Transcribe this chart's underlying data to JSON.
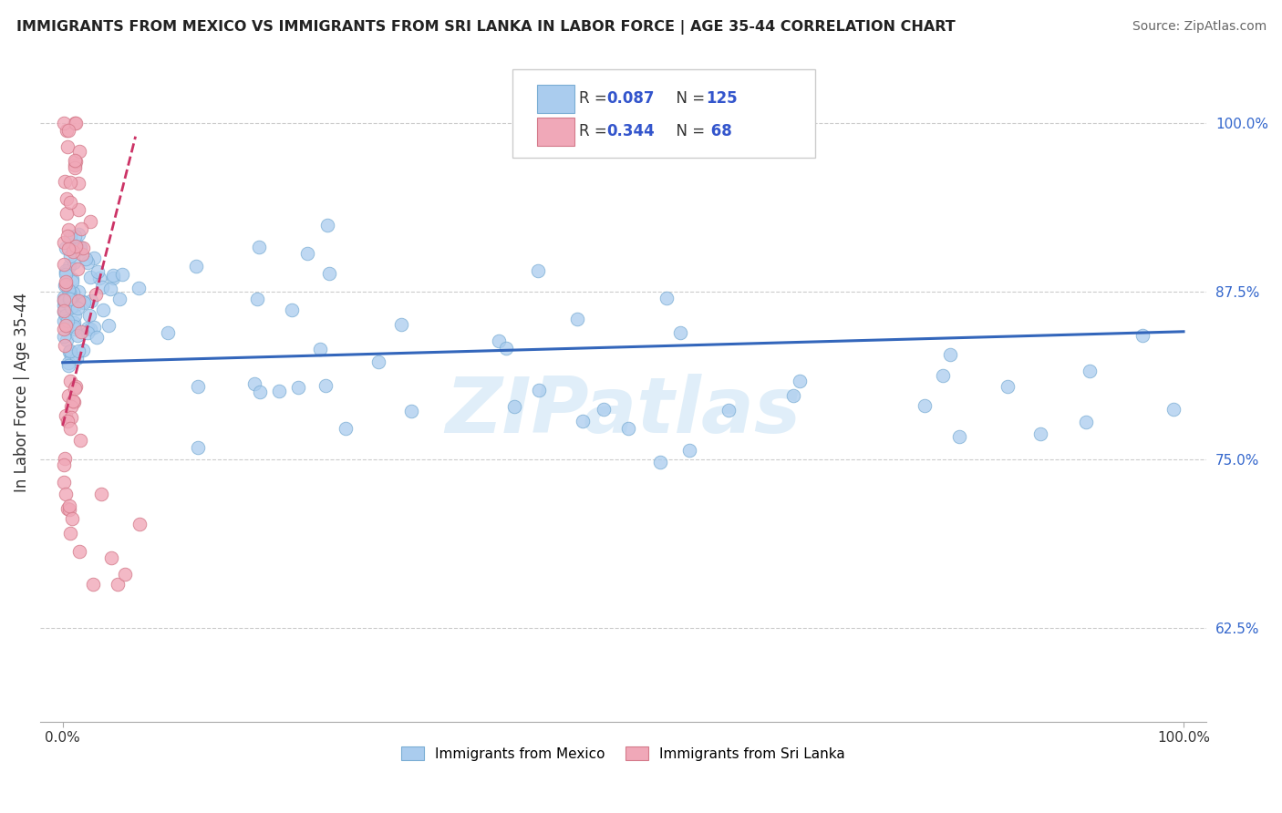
{
  "title": "IMMIGRANTS FROM MEXICO VS IMMIGRANTS FROM SRI LANKA IN LABOR FORCE | AGE 35-44 CORRELATION CHART",
  "source": "Source: ZipAtlas.com",
  "ylabel": "In Labor Force | Age 35-44",
  "xlim": [
    -0.02,
    1.02
  ],
  "ylim": [
    0.555,
    1.045
  ],
  "x_tick_labels": [
    "0.0%",
    "100.0%"
  ],
  "x_ticks": [
    0.0,
    1.0
  ],
  "y_tick_labels_right": [
    "62.5%",
    "75.0%",
    "87.5%",
    "100.0%"
  ],
  "y_ticks_right": [
    0.625,
    0.75,
    0.875,
    1.0
  ],
  "mexico_color": "#aaccee",
  "mexico_edge": "#7aadd4",
  "srilanka_color": "#f0a8b8",
  "srilanka_edge": "#d47a8a",
  "trend_mexico_color": "#3366bb",
  "trend_srilanka_color": "#cc3366",
  "watermark": "ZIPatlas",
  "legend_r_mexico": "R = 0.087",
  "legend_n_mexico": "N = 125",
  "legend_r_srilanka": "R = 0.344",
  "legend_n_srilanka": "N =  68"
}
